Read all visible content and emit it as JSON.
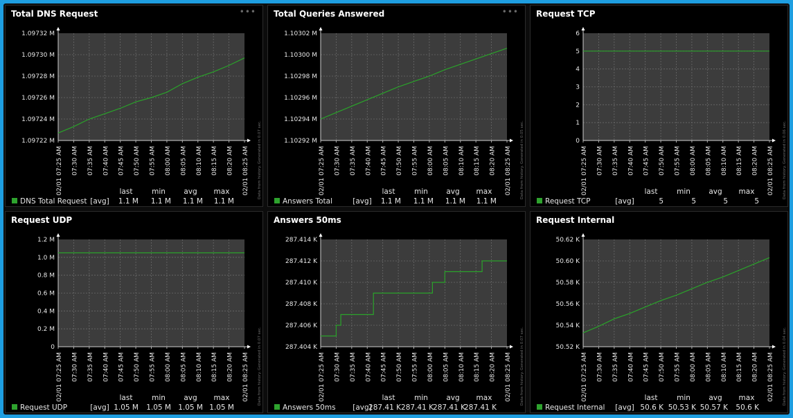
{
  "dashboard": {
    "panel_menu_label": "•••",
    "time_labels": [
      "02/01 07:25 AM",
      "07:30 AM",
      "07:35 AM",
      "07:40 AM",
      "07:45 AM",
      "07:50 AM",
      "07:55 AM",
      "08:00 AM",
      "08:05 AM",
      "08:10 AM",
      "08:15 AM",
      "08:20 AM",
      "02/01 08:25 AM"
    ],
    "stat_headers": [
      "last",
      "min",
      "avg",
      "max"
    ],
    "legend_color": "#2ea32e",
    "line_color": "#2aa32a",
    "plot_bg": "#3c3c3c",
    "grid_color": "#6a6a6a"
  },
  "chart_data": [
    {
      "id": "total-dns-request",
      "type": "line",
      "title": "Total DNS Request",
      "show_menu": true,
      "y_ticks": [
        "1.09722 M",
        "1.09724 M",
        "1.09726 M",
        "1.09728 M",
        "1.09730 M",
        "1.09732 M"
      ],
      "ylim": [
        1.09722,
        1.09732
      ],
      "y_unit": "M",
      "x_minutes": [
        0,
        5,
        10,
        15,
        20,
        25,
        30,
        35,
        40,
        45,
        50,
        55,
        60
      ],
      "series": [
        {
          "name": "DNS Total Request",
          "agg": "[avg]",
          "stats": [
            "1.1 M",
            "1.1 M",
            "1.1 M",
            "1.1 M"
          ],
          "values": [
            1.097227,
            1.097233,
            1.09724,
            1.097245,
            1.09725,
            1.097256,
            1.09726,
            1.097265,
            1.097273,
            1.097279,
            1.097284,
            1.09729,
            1.097297
          ]
        }
      ],
      "side_note": "Data from history. Generated in 0.07 sec."
    },
    {
      "id": "total-queries-answered",
      "type": "line",
      "title": "Total Queries Answered",
      "show_menu": true,
      "y_ticks": [
        "1.10292 M",
        "1.10294 M",
        "1.10296 M",
        "1.10298 M",
        "1.10300 M",
        "1.10302 M"
      ],
      "ylim": [
        1.10292,
        1.10302
      ],
      "y_unit": "M",
      "x_minutes": [
        0,
        5,
        10,
        15,
        20,
        25,
        30,
        35,
        40,
        45,
        50,
        55,
        60
      ],
      "series": [
        {
          "name": "Answers Total",
          "agg": "[avg]",
          "stats": [
            "1.1 M",
            "1.1 M",
            "1.1 M",
            "1.1 M"
          ],
          "values": [
            1.10294,
            1.102946,
            1.102952,
            1.102958,
            1.102964,
            1.10297,
            1.102975,
            1.10298,
            1.102986,
            1.102991,
            1.102996,
            1.103001,
            1.103006
          ]
        }
      ],
      "side_note": "Data from history. Generated in 0.05 sec."
    },
    {
      "id": "request-tcp",
      "type": "line",
      "title": "Request TCP",
      "show_menu": false,
      "y_ticks": [
        "0",
        "1",
        "2",
        "3",
        "4",
        "5",
        "6"
      ],
      "ylim": [
        0,
        6
      ],
      "y_unit": "",
      "x_minutes": [
        0,
        60
      ],
      "series": [
        {
          "name": "Request TCP",
          "agg": "[avg]",
          "stats": [
            "5",
            "5",
            "5",
            "5"
          ],
          "values": [
            5,
            5
          ]
        }
      ],
      "side_note": "Data from history. Generated in 0.06 sec."
    },
    {
      "id": "request-udp",
      "type": "line",
      "title": "Request UDP",
      "show_menu": false,
      "y_ticks": [
        "0",
        "0.2 M",
        "0.4 M",
        "0.6 M",
        "0.8 M",
        "1.0 M",
        "1.2 M"
      ],
      "ylim": [
        0,
        1.2
      ],
      "y_unit": "M",
      "x_minutes": [
        0,
        60
      ],
      "series": [
        {
          "name": "Request UDP",
          "agg": "[avg]",
          "stats": [
            "1.05 M",
            "1.05 M",
            "1.05 M",
            "1.05 M"
          ],
          "values": [
            1.05,
            1.05
          ]
        }
      ],
      "side_note": "Data from history. Generated in 0.07 sec."
    },
    {
      "id": "answers-50ms",
      "type": "line",
      "step": true,
      "title": "Answers 50ms",
      "show_menu": false,
      "y_ticks": [
        "287.404 K",
        "287.406 K",
        "287.408 K",
        "287.410 K",
        "287.412 K",
        "287.414 K"
      ],
      "ylim": [
        287.404,
        287.414
      ],
      "y_unit": "K",
      "x_minutes": [
        0,
        5,
        5.5,
        6.5,
        15,
        17,
        35,
        36,
        39,
        40,
        51,
        52,
        60
      ],
      "series": [
        {
          "name": "Answers 50ms",
          "agg": "[avg]",
          "stats": [
            "287.41 K",
            "287.41 K",
            "287.41 K",
            "287.41 K"
          ],
          "values": [
            287.405,
            287.406,
            287.406,
            287.407,
            287.407,
            287.409,
            287.409,
            287.41,
            287.41,
            287.411,
            287.411,
            287.412,
            287.412
          ]
        }
      ],
      "side_note": "Data from history. Generated in 0.07 sec."
    },
    {
      "id": "request-internal",
      "type": "line",
      "title": "Request Internal",
      "show_menu": false,
      "y_ticks": [
        "50.52 K",
        "50.54 K",
        "50.56 K",
        "50.58 K",
        "50.60 K",
        "50.62 K"
      ],
      "ylim": [
        50.52,
        50.62
      ],
      "y_unit": "K",
      "x_minutes": [
        0,
        5,
        10,
        15,
        20,
        25,
        30,
        35,
        40,
        45,
        50,
        55,
        60
      ],
      "series": [
        {
          "name": "Request Internal",
          "agg": "[avg]",
          "stats": [
            "50.6 K",
            "50.53 K",
            "50.57 K",
            "50.6 K"
          ],
          "values": [
            50.533,
            50.539,
            50.546,
            50.551,
            50.557,
            50.563,
            50.568,
            50.574,
            50.58,
            50.585,
            50.591,
            50.597,
            50.603
          ]
        }
      ],
      "side_note": "Data from history. Generated in 0.04 sec."
    }
  ]
}
